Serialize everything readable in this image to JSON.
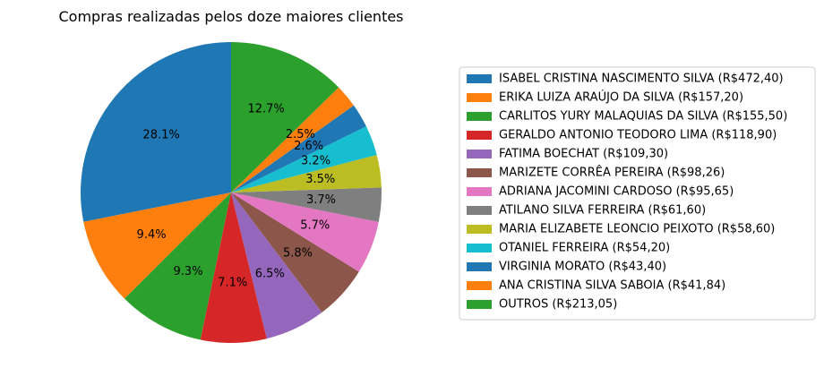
{
  "chart_data": {
    "type": "pie",
    "title": "Compras realizadas pelos doze maiores clientes",
    "start_angle_deg": 90,
    "direction": "counterclockwise",
    "legend_position": "right",
    "slices": [
      {
        "label": "ISABEL CRISTINA NASCIMENTO SILVA  (R$472,40)",
        "value": 472.4,
        "pct_label": "28.1%",
        "color": "#1f77b4"
      },
      {
        "label": "ERIKA LUIZA  ARAÚJO DA SILVA (R$157,20)",
        "value": 157.2,
        "pct_label": "9.4%",
        "color": "#ff7f0e"
      },
      {
        "label": "CARLITOS YURY MALAQUIAS DA SILVA  (R$155,50)",
        "value": 155.5,
        "pct_label": "9.3%",
        "color": "#2ca02c"
      },
      {
        "label": "GERALDO ANTONIO TEODORO LIMA  (R$118,90)",
        "value": 118.9,
        "pct_label": "7.1%",
        "color": "#d62728"
      },
      {
        "label": "FATIMA BOECHAT (R$109,30)",
        "value": 109.3,
        "pct_label": "6.5%",
        "color": "#9467bd"
      },
      {
        "label": "MARIZETE CORRÊA PEREIRA  (R$98,26)",
        "value": 98.26,
        "pct_label": "5.8%",
        "color": "#8c564b"
      },
      {
        "label": "ADRIANA JACOMINI CARDOSO (R$95,65)",
        "value": 95.65,
        "pct_label": "5.7%",
        "color": "#e377c2"
      },
      {
        "label": "ATILANO SILVA FERREIRA (R$61,60)",
        "value": 61.6,
        "pct_label": "3.7%",
        "color": "#7f7f7f"
      },
      {
        "label": "MARIA ELIZABETE LEONCIO PEIXOTO (R$58,60)",
        "value": 58.6,
        "pct_label": "3.5%",
        "color": "#bcbd22"
      },
      {
        "label": "OTANIEL FERREIRA (R$54,20)",
        "value": 54.2,
        "pct_label": "3.2%",
        "color": "#17becf"
      },
      {
        "label": "VIRGINIA MORATO (R$43,40)",
        "value": 43.4,
        "pct_label": "2.6%",
        "color": "#1f77b4"
      },
      {
        "label": "ANA CRISTINA SILVA SABOIA (R$41,84)",
        "value": 41.84,
        "pct_label": "2.5%",
        "color": "#ff7f0e"
      },
      {
        "label": "OUTROS (R$213,05)",
        "value": 213.05,
        "pct_label": "12.7%",
        "color": "#2ca02c"
      }
    ]
  }
}
